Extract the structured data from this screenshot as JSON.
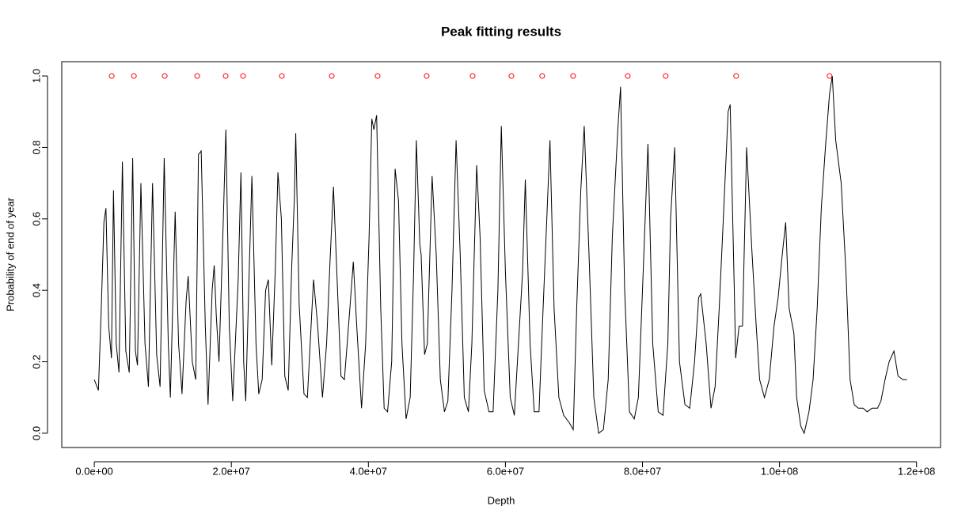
{
  "chart_data": {
    "type": "line",
    "title": "Peak fitting results",
    "x_label": "Depth",
    "y_label": "Probability of end of year",
    "xlim": [
      -4750000.0,
      123500000.0
    ],
    "ylim": [
      -0.04,
      1.04
    ],
    "xticks": [
      {
        "value": 0,
        "label": "0.0e+00"
      },
      {
        "value": 20000000.0,
        "label": "2.0e+07"
      },
      {
        "value": 40000000.0,
        "label": "4.0e+07"
      },
      {
        "value": 60000000.0,
        "label": "6.0e+07"
      },
      {
        "value": 80000000.0,
        "label": "8.0e+07"
      },
      {
        "value": 100000000.0,
        "label": "1.0e+08"
      },
      {
        "value": 120000000.0,
        "label": "1.2e+08"
      }
    ],
    "yticks": [
      {
        "value": 0,
        "label": "0.0"
      },
      {
        "value": 0.2,
        "label": "0.2"
      },
      {
        "value": 0.4,
        "label": "0.4"
      },
      {
        "value": 0.6,
        "label": "0.6"
      },
      {
        "value": 0.8,
        "label": "0.8"
      },
      {
        "value": 1,
        "label": "1.0"
      }
    ],
    "series": [
      {
        "type": "line",
        "color": "#000000",
        "x": [
          0,
          600000.0,
          1000000.0,
          1400000.0,
          1700000.0,
          2100000.0,
          2500000.0,
          2800000.0,
          3200000.0,
          3600000.0,
          4100000.0,
          4600000.0,
          5100000.0,
          5600000.0,
          6000000.0,
          6300000.0,
          6800000.0,
          7400000.0,
          7900000.0,
          8500000.0,
          9100000.0,
          9600000.0,
          10200000.0,
          10800000.0,
          11100000.0,
          11800000.0,
          12300000.0,
          12800000.0,
          13400000.0,
          13700000.0,
          14300000.0,
          14800000.0,
          15200000.0,
          15600000.0,
          16200000.0,
          16600000.0,
          17200000.0,
          17500000.0,
          17800000.0,
          18200000.0,
          18800000.0,
          19200000.0,
          19700000.0,
          20200000.0,
          20600000.0,
          21000000.0,
          21400000.0,
          21800000.0,
          22100000.0,
          22600000.0,
          23000000.0,
          23600000.0,
          24000000.0,
          24500000.0,
          25000000.0,
          25400000.0,
          25900000.0,
          26400000.0,
          26800000.0,
          27300000.0,
          27800000.0,
          28300000.0,
          28800000.0,
          29200000.0,
          29400000.0,
          29900000.0,
          30600000.0,
          31100000.0,
          31800000.0,
          32000000.0,
          32600000.0,
          33300000.0,
          33900000.0,
          34400000.0,
          34900000.0,
          35500000.0,
          36000000.0,
          36500000.0,
          37300000.0,
          37800000.0,
          38300000.0,
          39000000.0,
          39600000.0,
          40100000.0,
          40500000.0,
          40800000.0,
          41200000.0,
          41800000.0,
          42300000.0,
          42800000.0,
          43400000.0,
          43900000.0,
          44400000.0,
          44900000.0,
          45500000.0,
          46100000.0,
          46600000.0,
          47000000.0,
          47500000.0,
          47700000.0,
          48200000.0,
          48600000.0,
          49300000.0,
          49900000.0,
          50500000.0,
          51100000.0,
          51600000.0,
          52200000.0,
          52800000.0,
          53400000.0,
          54000000.0,
          54600000.0,
          55100000.0,
          55800000.0,
          56300000.0,
          56900000.0,
          57600000.0,
          58200000.0,
          58900000.0,
          59400000.0,
          60000000.0,
          60700000.0,
          61300000.0,
          61900000.0,
          62500000.0,
          62900000.0,
          63600000.0,
          64200000.0,
          64900000.0,
          65500000.0,
          66100000.0,
          66500000.0,
          67100000.0,
          67800000.0,
          68500000.0,
          69300000.0,
          69900000.0,
          70400000.0,
          71000000.0,
          71500000.0,
          72200000.0,
          72900000.0,
          73600000.0,
          74300000.0,
          75000000.0,
          75600000.0,
          76400000.0,
          76800000.0,
          77400000.0,
          78100000.0,
          78800000.0,
          79400000.0,
          80200000.0,
          80800000.0,
          81500000.0,
          82300000.0,
          83000000.0,
          83700000.0,
          84100000.0,
          84700000.0,
          85400000.0,
          86200000.0,
          86900000.0,
          87600000.0,
          88200000.0,
          88500000.0,
          89300000.0,
          90000000.0,
          90600000.0,
          91200000.0,
          91800000.0,
          92500000.0,
          92800000.0,
          93400000.0,
          93600000.0,
          94100000.0,
          94600000.0,
          95200000.0,
          96000000.0,
          96600000.0,
          97100000.0,
          97800000.0,
          98500000.0,
          99200000.0,
          99800000.0,
          100400000.0,
          100900000.0,
          101400000.0,
          102100000.0,
          102500000.0,
          103100000.0,
          103600000.0,
          104300000.0,
          104900000.0,
          105500000.0,
          106100000.0,
          106700000.0,
          107300000.0,
          107700000.0,
          108200000.0,
          109000000.0,
          109700000.0,
          110300000.0,
          110900000.0,
          111500000.0,
          112200000.0,
          112800000.0,
          113500000.0,
          114300000.0,
          114800000.0,
          115400000.0,
          116000000.0,
          116700000.0,
          117300000.0,
          118000000.0,
          118600000.0
        ],
        "values": [
          0.15,
          0.12,
          0.34,
          0.59,
          0.63,
          0.3,
          0.21,
          0.68,
          0.25,
          0.17,
          0.76,
          0.23,
          0.17,
          0.77,
          0.23,
          0.19,
          0.7,
          0.25,
          0.13,
          0.7,
          0.22,
          0.13,
          0.77,
          0.25,
          0.1,
          0.62,
          0.25,
          0.11,
          0.37,
          0.44,
          0.2,
          0.15,
          0.78,
          0.79,
          0.3,
          0.08,
          0.4,
          0.47,
          0.33,
          0.2,
          0.58,
          0.85,
          0.3,
          0.09,
          0.26,
          0.43,
          0.73,
          0.2,
          0.09,
          0.45,
          0.72,
          0.25,
          0.11,
          0.15,
          0.4,
          0.43,
          0.19,
          0.45,
          0.73,
          0.6,
          0.16,
          0.12,
          0.46,
          0.66,
          0.84,
          0.36,
          0.11,
          0.1,
          0.36,
          0.43,
          0.3,
          0.1,
          0.25,
          0.48,
          0.69,
          0.4,
          0.16,
          0.15,
          0.35,
          0.48,
          0.3,
          0.07,
          0.25,
          0.55,
          0.88,
          0.85,
          0.89,
          0.35,
          0.07,
          0.06,
          0.2,
          0.74,
          0.65,
          0.25,
          0.04,
          0.1,
          0.45,
          0.82,
          0.53,
          0.5,
          0.22,
          0.25,
          0.72,
          0.5,
          0.15,
          0.06,
          0.09,
          0.4,
          0.82,
          0.5,
          0.1,
          0.06,
          0.25,
          0.75,
          0.55,
          0.12,
          0.06,
          0.06,
          0.4,
          0.86,
          0.45,
          0.1,
          0.05,
          0.25,
          0.45,
          0.71,
          0.25,
          0.06,
          0.06,
          0.35,
          0.63,
          0.82,
          0.35,
          0.1,
          0.05,
          0.03,
          0.01,
          0.35,
          0.68,
          0.86,
          0.5,
          0.1,
          0.0,
          0.01,
          0.15,
          0.55,
          0.85,
          0.97,
          0.4,
          0.06,
          0.04,
          0.1,
          0.5,
          0.81,
          0.25,
          0.06,
          0.05,
          0.25,
          0.6,
          0.8,
          0.2,
          0.08,
          0.07,
          0.2,
          0.38,
          0.39,
          0.25,
          0.07,
          0.13,
          0.35,
          0.6,
          0.9,
          0.92,
          0.4,
          0.21,
          0.3,
          0.3,
          0.8,
          0.5,
          0.3,
          0.15,
          0.1,
          0.15,
          0.3,
          0.38,
          0.5,
          0.59,
          0.35,
          0.28,
          0.1,
          0.02,
          0.0,
          0.06,
          0.15,
          0.35,
          0.63,
          0.8,
          0.95,
          1.0,
          0.82,
          0.7,
          0.45,
          0.15,
          0.08,
          0.07,
          0.07,
          0.06,
          0.07,
          0.07,
          0.09,
          0.15,
          0.2,
          0.23,
          0.16,
          0.15,
          0.15
        ]
      },
      {
        "type": "scatter",
        "color": "#ff0000",
        "x": [
          2540000.0,
          5780000.0,
          10280000.0,
          15020000.0,
          19170000.0,
          21710000.0,
          27370000.0,
          34650000.0,
          41350000.0,
          48510000.0,
          55210000.0,
          60870000.0,
          65370000.0,
          69880000.0,
          77850000.0,
          83390000.0,
          93670000.0,
          107300000.0
        ],
        "values": [
          1,
          1,
          1,
          1,
          1,
          1,
          1,
          1,
          1,
          1,
          1,
          1,
          1,
          1,
          1,
          1,
          1,
          1
        ]
      }
    ]
  }
}
